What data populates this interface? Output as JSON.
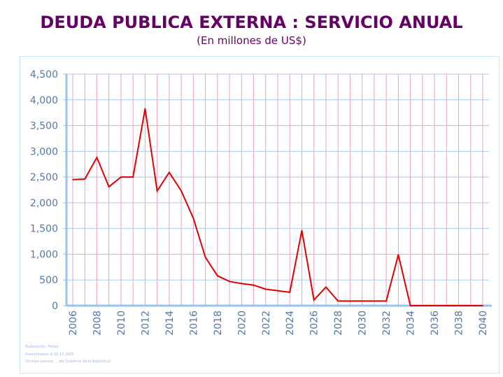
{
  "title": "DEUDA PUBLICA EXTERNA : SERVICIO ANUAL",
  "subtitle": "(En millones de US$)",
  "notes": [
    "Elaboración: Fedea",
    "Desembolsos al 31.12.2005",
    "(Incluye pasivos ... del Gobierno de la República)"
  ],
  "chart_data": {
    "type": "line",
    "title": "DEUDA PUBLICA EXTERNA : SERVICIO ANUAL",
    "subtitle": "(En millones de US$)",
    "xlabel": "",
    "ylabel": "",
    "ylim": [
      0,
      4500
    ],
    "yticks": [
      0,
      500,
      1000,
      1500,
      2000,
      2500,
      3000,
      3500,
      4000,
      4500
    ],
    "ytick_labels": [
      "0",
      "500",
      "1,000",
      "1,500",
      "2,000",
      "2,500",
      "3,000",
      "3,500",
      "4,000",
      "4,500"
    ],
    "xlim": [
      2006,
      2040
    ],
    "xtick_labels": [
      "2006",
      "2008",
      "2010",
      "2012",
      "2014",
      "2016",
      "2018",
      "2020",
      "2022",
      "2024",
      "2026",
      "2028",
      "2030",
      "2032",
      "2034",
      "2036",
      "2038",
      "2040"
    ],
    "grid": true,
    "color": "#e00000",
    "series": [
      {
        "name": "Servicio anual",
        "x": [
          2006,
          2007,
          2008,
          2009,
          2010,
          2011,
          2012,
          2013,
          2014,
          2015,
          2016,
          2017,
          2018,
          2019,
          2020,
          2021,
          2022,
          2023,
          2024,
          2025,
          2026,
          2027,
          2028,
          2029,
          2030,
          2031,
          2032,
          2033,
          2034,
          2035,
          2036,
          2037,
          2038,
          2039,
          2040
        ],
        "values": [
          2450,
          2460,
          2880,
          2310,
          2500,
          2500,
          3830,
          2230,
          2590,
          2230,
          1700,
          940,
          580,
          470,
          430,
          400,
          320,
          290,
          260,
          1460,
          110,
          360,
          90,
          90,
          90,
          90,
          90,
          990,
          0,
          0,
          0,
          0,
          0,
          0,
          0
        ]
      }
    ]
  }
}
